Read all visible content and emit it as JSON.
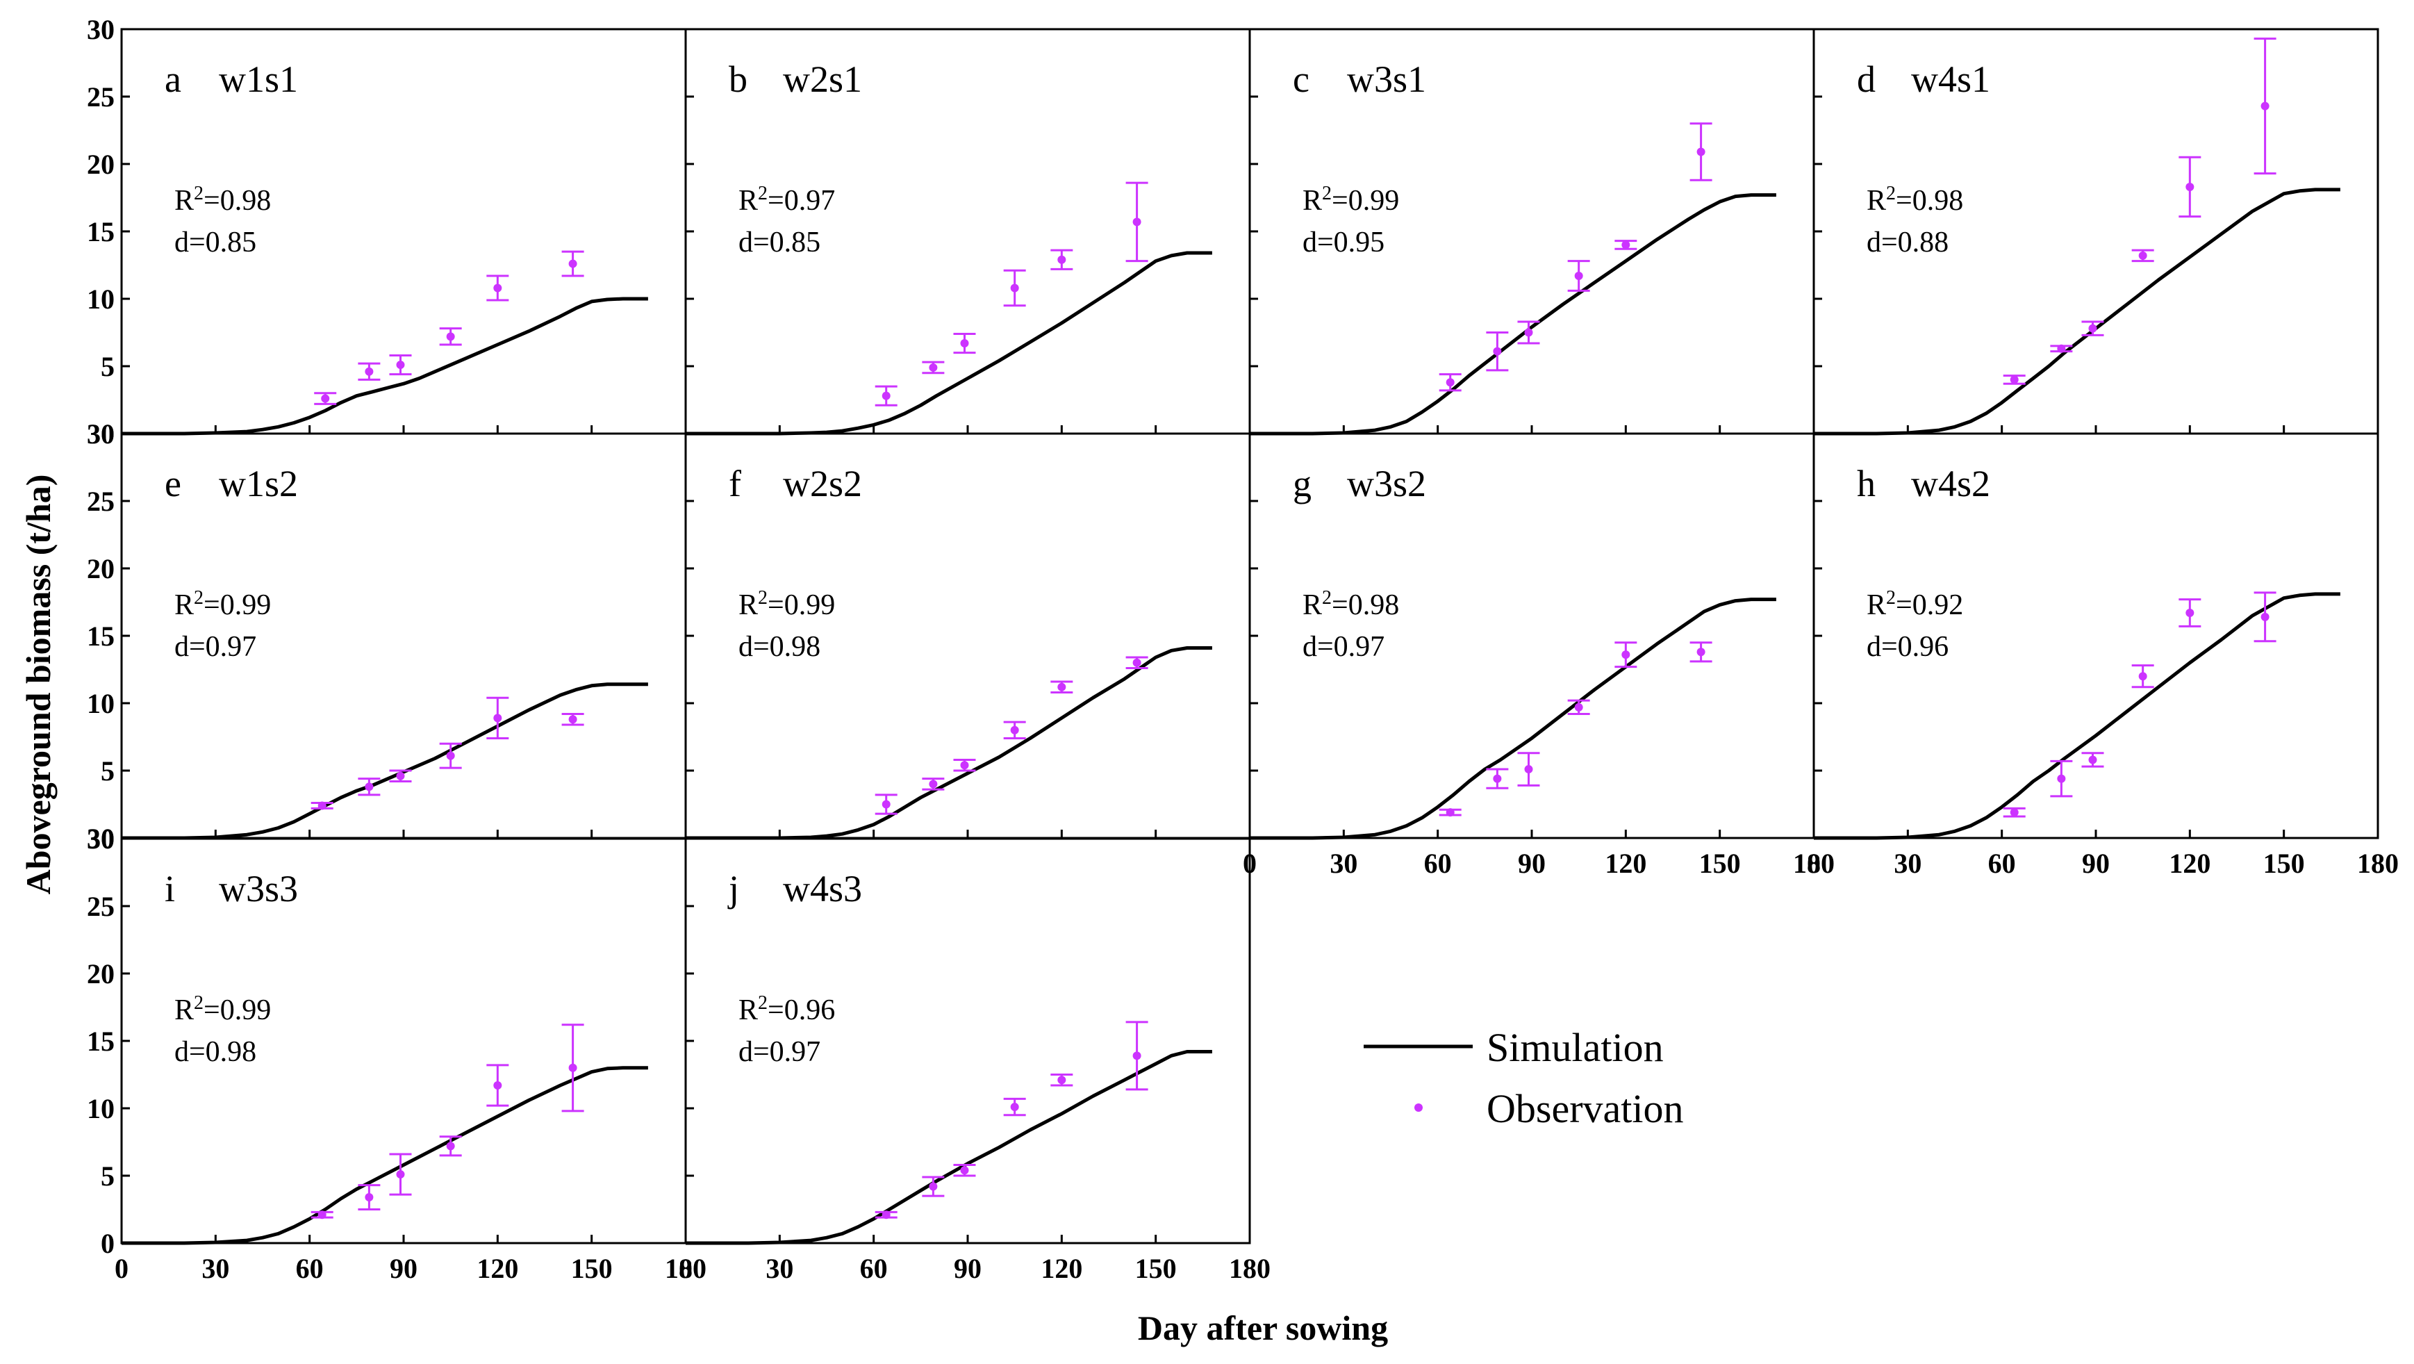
{
  "figure": {
    "ylabel": "Aboveground biomass (t/ha)",
    "xlabel": "Day after sowing",
    "y_ticks": [
      "0",
      "5",
      "10",
      "15",
      "20",
      "25",
      "30"
    ],
    "x_ticks": [
      "0",
      "30",
      "60",
      "90",
      "120",
      "150",
      "180"
    ],
    "legend": {
      "simulation": "Simulation",
      "observation": "Observation"
    },
    "colors": {
      "simulation": "#000000",
      "observation": "#cc33ff",
      "axes": "#000000",
      "background": "#ffffff"
    }
  },
  "chart_data": [
    {
      "type": "line",
      "panel": "a",
      "name": "w1s1",
      "r2": "0.98",
      "d": "0.85",
      "xlim": [
        0,
        180
      ],
      "ylim": [
        0,
        30
      ],
      "simulation": {
        "x": [
          0,
          20,
          30,
          40,
          45,
          50,
          55,
          60,
          65,
          70,
          75,
          80,
          85,
          90,
          95,
          100,
          110,
          120,
          130,
          140,
          145,
          150,
          155,
          160,
          168
        ],
        "y": [
          0,
          0,
          0.05,
          0.15,
          0.3,
          0.5,
          0.8,
          1.2,
          1.7,
          2.3,
          2.8,
          3.1,
          3.4,
          3.7,
          4.1,
          4.6,
          5.6,
          6.6,
          7.6,
          8.7,
          9.3,
          9.8,
          9.95,
          10,
          10
        ]
      },
      "observation": {
        "x": [
          65,
          79,
          89,
          105,
          120,
          144
        ],
        "y": [
          2.6,
          4.6,
          5.1,
          7.2,
          10.8,
          12.6
        ],
        "err": [
          0.4,
          0.6,
          0.7,
          0.6,
          0.9,
          0.9
        ]
      }
    },
    {
      "type": "line",
      "panel": "b",
      "name": "w2s1",
      "r2": "0.97",
      "d": "0.85",
      "xlim": [
        0,
        180
      ],
      "ylim": [
        0,
        30
      ],
      "simulation": {
        "x": [
          0,
          30,
          40,
          45,
          50,
          55,
          60,
          65,
          70,
          75,
          80,
          90,
          100,
          110,
          120,
          130,
          140,
          145,
          150,
          155,
          160,
          168
        ],
        "y": [
          0,
          0,
          0.05,
          0.1,
          0.2,
          0.4,
          0.65,
          1.0,
          1.5,
          2.1,
          2.8,
          4.1,
          5.4,
          6.8,
          8.2,
          9.7,
          11.2,
          12.0,
          12.8,
          13.2,
          13.4,
          13.4
        ]
      },
      "observation": {
        "x": [
          64,
          79,
          89,
          105,
          120,
          144
        ],
        "y": [
          2.8,
          4.9,
          6.7,
          10.8,
          12.9,
          15.7
        ],
        "err": [
          0.7,
          0.4,
          0.7,
          1.3,
          0.7,
          2.9
        ]
      }
    },
    {
      "type": "line",
      "panel": "c",
      "name": "w3s1",
      "r2": "0.99",
      "d": "0.95",
      "xlim": [
        0,
        180
      ],
      "ylim": [
        0,
        30
      ],
      "simulation": {
        "x": [
          0,
          20,
          30,
          40,
          45,
          50,
          55,
          60,
          65,
          70,
          75,
          80,
          90,
          100,
          110,
          120,
          130,
          140,
          145,
          150,
          155,
          160,
          168
        ],
        "y": [
          0,
          0,
          0.05,
          0.25,
          0.5,
          0.9,
          1.6,
          2.4,
          3.3,
          4.3,
          5.2,
          6.1,
          7.9,
          9.6,
          11.2,
          12.8,
          14.4,
          15.9,
          16.6,
          17.2,
          17.6,
          17.7,
          17.7
        ]
      },
      "observation": {
        "x": [
          64,
          79,
          89,
          105,
          120,
          144
        ],
        "y": [
          3.8,
          6.1,
          7.5,
          11.7,
          14.0,
          20.9
        ],
        "err": [
          0.6,
          1.4,
          0.8,
          1.1,
          0.3,
          2.1
        ]
      }
    },
    {
      "type": "line",
      "panel": "d",
      "name": "w4s1",
      "r2": "0.98",
      "d": "0.88",
      "xlim": [
        0,
        180
      ],
      "ylim": [
        0,
        30
      ],
      "simulation": {
        "x": [
          0,
          20,
          30,
          40,
          45,
          50,
          55,
          60,
          65,
          70,
          75,
          80,
          90,
          100,
          110,
          120,
          130,
          140,
          150,
          155,
          160,
          168
        ],
        "y": [
          0,
          0,
          0.05,
          0.25,
          0.5,
          0.9,
          1.5,
          2.3,
          3.2,
          4.1,
          5.0,
          6.0,
          7.8,
          9.6,
          11.4,
          13.1,
          14.8,
          16.5,
          17.8,
          18.0,
          18.1,
          18.1
        ]
      },
      "observation": {
        "x": [
          64,
          79,
          89,
          105,
          120,
          144
        ],
        "y": [
          4.0,
          6.3,
          7.8,
          13.2,
          18.3,
          24.3
        ],
        "err": [
          0.3,
          0.2,
          0.5,
          0.4,
          2.2,
          5.0
        ]
      }
    },
    {
      "type": "line",
      "panel": "e",
      "name": "w1s2",
      "r2": "0.99",
      "d": "0.97",
      "xlim": [
        0,
        180
      ],
      "ylim": [
        0,
        30
      ],
      "simulation": {
        "x": [
          0,
          20,
          30,
          40,
          45,
          50,
          55,
          60,
          65,
          70,
          75,
          80,
          90,
          100,
          110,
          120,
          130,
          140,
          145,
          150,
          155,
          160,
          168
        ],
        "y": [
          0,
          0,
          0.05,
          0.25,
          0.45,
          0.75,
          1.2,
          1.8,
          2.4,
          3.0,
          3.5,
          3.9,
          4.9,
          5.9,
          7.1,
          8.3,
          9.5,
          10.6,
          11.0,
          11.3,
          11.4,
          11.4,
          11.4
        ]
      },
      "observation": {
        "x": [
          64,
          79,
          89,
          105,
          120,
          144
        ],
        "y": [
          2.4,
          3.8,
          4.6,
          6.1,
          8.9,
          8.8
        ],
        "err": [
          0.2,
          0.6,
          0.4,
          0.9,
          1.5,
          0.4
        ]
      }
    },
    {
      "type": "line",
      "panel": "f",
      "name": "w2s2",
      "r2": "0.99",
      "d": "0.98",
      "xlim": [
        0,
        180
      ],
      "ylim": [
        0,
        30
      ],
      "simulation": {
        "x": [
          0,
          30,
          40,
          45,
          50,
          55,
          60,
          65,
          70,
          75,
          80,
          90,
          100,
          110,
          120,
          130,
          140,
          145,
          150,
          155,
          160,
          168
        ],
        "y": [
          0,
          0,
          0.05,
          0.15,
          0.3,
          0.6,
          1.0,
          1.6,
          2.3,
          3.0,
          3.6,
          4.8,
          6.0,
          7.4,
          8.9,
          10.4,
          11.8,
          12.6,
          13.4,
          13.9,
          14.1,
          14.1
        ]
      },
      "observation": {
        "x": [
          64,
          79,
          89,
          105,
          120,
          144
        ],
        "y": [
          2.5,
          4.0,
          5.4,
          8.0,
          11.2,
          13.0
        ],
        "err": [
          0.7,
          0.4,
          0.4,
          0.6,
          0.4,
          0.4
        ]
      }
    },
    {
      "type": "line",
      "panel": "g",
      "name": "w3s2",
      "r2": "0.98",
      "d": "0.97",
      "xlim": [
        0,
        180
      ],
      "ylim": [
        0,
        30
      ],
      "simulation": {
        "x": [
          0,
          20,
          30,
          40,
          45,
          50,
          55,
          60,
          65,
          70,
          75,
          80,
          90,
          100,
          110,
          120,
          130,
          140,
          145,
          150,
          155,
          160,
          168
        ],
        "y": [
          0,
          0,
          0.05,
          0.25,
          0.5,
          0.9,
          1.5,
          2.3,
          3.2,
          4.2,
          5.1,
          5.8,
          7.4,
          9.2,
          11.0,
          12.7,
          14.4,
          16.0,
          16.8,
          17.3,
          17.6,
          17.7,
          17.7
        ]
      },
      "observation": {
        "x": [
          64,
          79,
          89,
          105,
          120,
          144
        ],
        "y": [
          1.9,
          4.4,
          5.1,
          9.7,
          13.6,
          13.8
        ],
        "err": [
          0.2,
          0.7,
          1.2,
          0.5,
          0.9,
          0.7
        ]
      }
    },
    {
      "type": "line",
      "panel": "h",
      "name": "w4s2",
      "r2": "0.92",
      "d": "0.96",
      "xlim": [
        0,
        180
      ],
      "ylim": [
        0,
        30
      ],
      "simulation": {
        "x": [
          0,
          20,
          30,
          40,
          45,
          50,
          55,
          60,
          65,
          70,
          75,
          80,
          90,
          100,
          110,
          120,
          130,
          140,
          150,
          155,
          160,
          168
        ],
        "y": [
          0,
          0,
          0.05,
          0.25,
          0.5,
          0.9,
          1.5,
          2.3,
          3.2,
          4.2,
          5.0,
          5.9,
          7.6,
          9.4,
          11.2,
          13.0,
          14.7,
          16.5,
          17.8,
          18.0,
          18.1,
          18.1
        ]
      },
      "observation": {
        "x": [
          64,
          79,
          89,
          105,
          120,
          144
        ],
        "y": [
          1.9,
          4.4,
          5.8,
          12.0,
          16.7,
          16.4
        ],
        "err": [
          0.3,
          1.3,
          0.5,
          0.8,
          1.0,
          1.8
        ]
      }
    },
    {
      "type": "line",
      "panel": "i",
      "name": "w3s3",
      "r2": "0.99",
      "d": "0.98",
      "xlim": [
        0,
        180
      ],
      "ylim": [
        0,
        30
      ],
      "simulation": {
        "x": [
          0,
          20,
          30,
          40,
          45,
          50,
          55,
          60,
          65,
          70,
          75,
          80,
          90,
          100,
          110,
          120,
          130,
          140,
          145,
          150,
          155,
          160,
          168
        ],
        "y": [
          0,
          0,
          0.05,
          0.2,
          0.4,
          0.7,
          1.2,
          1.8,
          2.5,
          3.3,
          4.0,
          4.6,
          5.8,
          7.0,
          8.2,
          9.4,
          10.6,
          11.7,
          12.2,
          12.7,
          12.95,
          13.0,
          13.0
        ]
      },
      "observation": {
        "x": [
          64,
          79,
          89,
          105,
          120,
          144
        ],
        "y": [
          2.1,
          3.4,
          5.1,
          7.2,
          11.7,
          13.0
        ],
        "err": [
          0.2,
          0.9,
          1.5,
          0.7,
          1.5,
          3.2
        ]
      }
    },
    {
      "type": "line",
      "panel": "j",
      "name": "w4s3",
      "r2": "0.96",
      "d": "0.97",
      "xlim": [
        0,
        180
      ],
      "ylim": [
        0,
        30
      ],
      "simulation": {
        "x": [
          0,
          20,
          30,
          40,
          45,
          50,
          55,
          60,
          65,
          70,
          75,
          80,
          90,
          100,
          110,
          120,
          130,
          140,
          145,
          150,
          155,
          160,
          168
        ],
        "y": [
          0,
          0,
          0.05,
          0.2,
          0.4,
          0.7,
          1.2,
          1.8,
          2.5,
          3.2,
          3.9,
          4.6,
          5.9,
          7.1,
          8.4,
          9.6,
          10.9,
          12.1,
          12.7,
          13.3,
          13.9,
          14.2,
          14.2
        ]
      },
      "observation": {
        "x": [
          64,
          79,
          89,
          105,
          120,
          144
        ],
        "y": [
          2.1,
          4.2,
          5.4,
          10.1,
          12.1,
          13.9
        ],
        "err": [
          0.2,
          0.7,
          0.4,
          0.6,
          0.4,
          2.5
        ]
      }
    }
  ]
}
